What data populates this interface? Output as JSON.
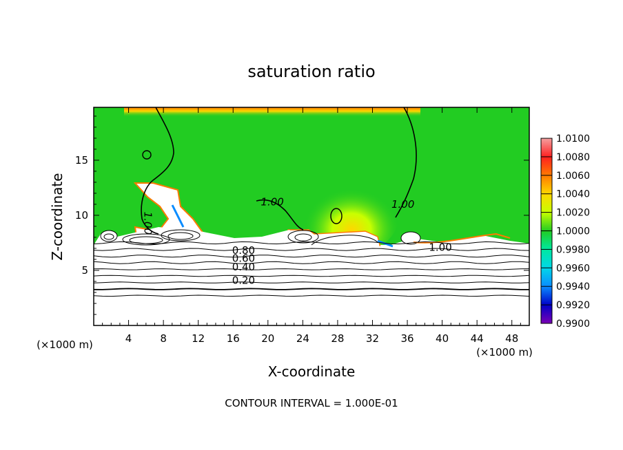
{
  "chart_data": {
    "type": "heatmap",
    "title": "saturation ratio",
    "xlabel": "X-coordinate",
    "ylabel": "Z-coordinate",
    "x_units": "(×1000 m)",
    "y_units": "(×1000 m)",
    "xlim": [
      0,
      50
    ],
    "ylim": [
      0,
      19.8
    ],
    "x_ticks": [
      4,
      8,
      12,
      16,
      20,
      24,
      28,
      32,
      36,
      40,
      44,
      48
    ],
    "y_ticks": [
      5,
      10,
      15
    ],
    "footer": "CONTOUR INTERVAL = 1.000E-01",
    "colorbar": {
      "levels": [
        "1.0100",
        "1.0080",
        "1.0060",
        "1.0040",
        "1.0020",
        "1.0000",
        "0.9980",
        "0.9960",
        "0.9940",
        "0.9920",
        "0.9900"
      ],
      "colors": [
        "#f4a0a0",
        "#ff2020",
        "#ff7a00",
        "#ffd700",
        "#c8ff00",
        "#22cc22",
        "#00e8a0",
        "#00d8e8",
        "#0a8cff",
        "#0000c8",
        "#7a00b4"
      ]
    },
    "contour_labels": [
      {
        "text": "1.00",
        "x": 5.8,
        "z": 9.6
      },
      {
        "text": "1.00",
        "x": 20.5,
        "z": 11.2
      },
      {
        "text": "1.00",
        "x": 35.5,
        "z": 11.0
      },
      {
        "text": "1.00",
        "x": 39.8,
        "z": 7.1
      },
      {
        "text": "0.80",
        "x": 17.2,
        "z": 6.8
      },
      {
        "text": "0.60",
        "x": 17.2,
        "z": 6.1
      },
      {
        "text": "0.40",
        "x": 17.2,
        "z": 5.3
      },
      {
        "text": "0.20",
        "x": 17.2,
        "z": 4.1
      }
    ],
    "contour_levels_below_cloud": [
      0.1,
      0.2,
      0.3,
      0.4,
      0.5,
      0.6,
      0.7,
      0.8,
      0.9
    ],
    "cloud_layer_top_z": 7.5,
    "grid": false
  }
}
